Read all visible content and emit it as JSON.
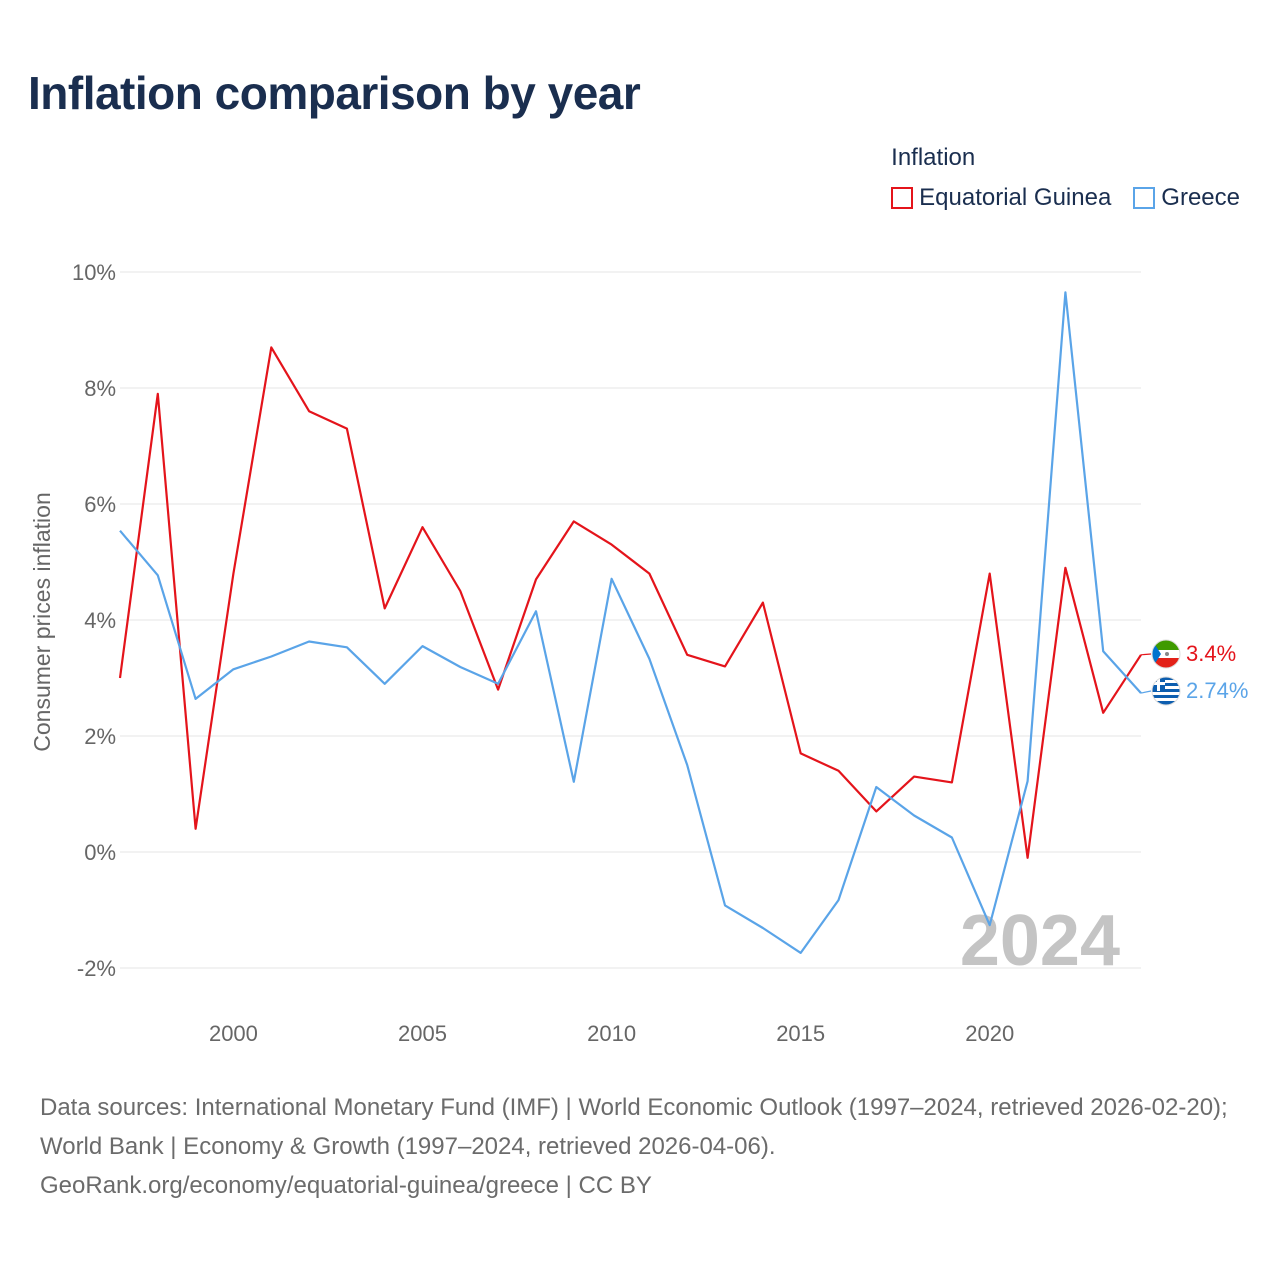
{
  "title": "Inflation comparison by year",
  "legend": {
    "title": "Inflation",
    "items": [
      {
        "label": "Equatorial Guinea",
        "color": "#e4141b"
      },
      {
        "label": "Greece",
        "color": "#5aa4e8"
      }
    ]
  },
  "chart_data": {
    "type": "line",
    "title": "Inflation comparison by year",
    "ylabel": "Consumer prices inflation",
    "xlabel": "",
    "x": [
      1997,
      1998,
      1999,
      2000,
      2001,
      2002,
      2003,
      2004,
      2005,
      2006,
      2007,
      2008,
      2009,
      2010,
      2011,
      2012,
      2013,
      2014,
      2015,
      2016,
      2017,
      2018,
      2019,
      2020,
      2021,
      2022,
      2023,
      2024
    ],
    "xlim": [
      1997,
      2024
    ],
    "ylim": [
      -2,
      10
    ],
    "yticks": [
      -2,
      0,
      2,
      4,
      6,
      8,
      10
    ],
    "ytick_labels": [
      "-2%",
      "0%",
      "2%",
      "4%",
      "6%",
      "8%",
      "10%"
    ],
    "xticks": [
      2000,
      2005,
      2010,
      2015,
      2020
    ],
    "xtick_labels": [
      "2000",
      "2005",
      "2010",
      "2015",
      "2020"
    ],
    "grid": true,
    "legend_position": "top-right",
    "current_year_label": "2024",
    "series": [
      {
        "name": "Equatorial Guinea",
        "color": "#e4141b",
        "end_label": "3.4%",
        "flag_icon": "equatorial-guinea-flag-icon",
        "values": [
          3.0,
          7.9,
          0.4,
          4.8,
          8.7,
          7.6,
          7.3,
          4.2,
          5.6,
          4.5,
          2.8,
          4.7,
          5.7,
          5.3,
          4.8,
          3.4,
          3.2,
          4.3,
          1.7,
          1.4,
          0.7,
          1.3,
          1.2,
          4.8,
          -0.1,
          4.9,
          2.4,
          3.4
        ]
      },
      {
        "name": "Greece",
        "color": "#5aa4e8",
        "end_label": "2.74%",
        "flag_icon": "greece-flag-icon",
        "values": [
          5.54,
          4.77,
          2.64,
          3.15,
          3.37,
          3.63,
          3.53,
          2.9,
          3.55,
          3.19,
          2.9,
          4.15,
          1.21,
          4.71,
          3.33,
          1.5,
          -0.92,
          -1.31,
          -1.74,
          -0.83,
          1.12,
          0.63,
          0.25,
          -1.26,
          1.22,
          9.65,
          3.46,
          2.74
        ]
      }
    ]
  },
  "footer": {
    "sources": "Data sources: International Monetary Fund (IMF) | World Economic Outlook (1997–2024, retrieved 2026-02-20); World Bank | Economy & Growth (1997–2024, retrieved 2026-04-06).",
    "credit": "GeoRank.org/economy/equatorial-guinea/greece | CC BY"
  }
}
